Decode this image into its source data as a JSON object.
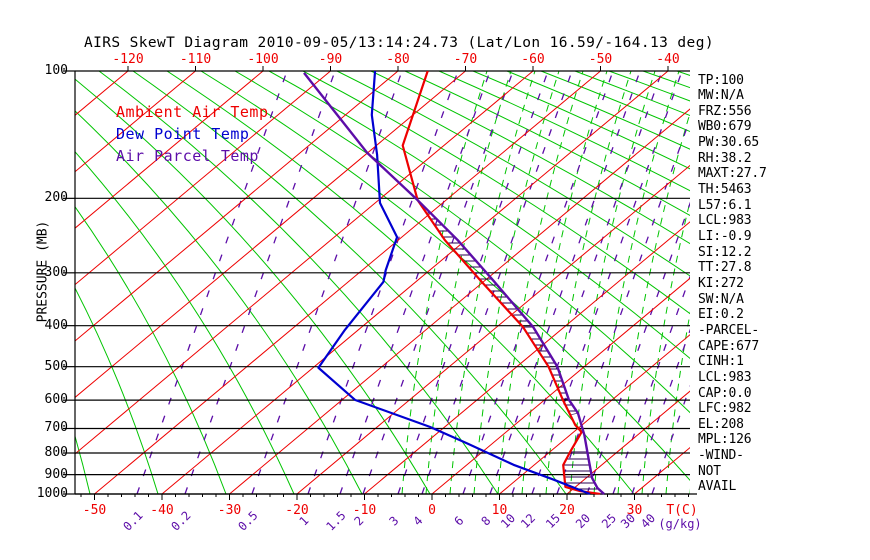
{
  "title": "AIRS SkewT Diagram 2010-09-05/13:14:24.73 (Lat/Lon 16.59/-164.13 deg)",
  "colors": {
    "temp_red": "#ee0000",
    "dew_blue": "#0000d0",
    "parcel_purple": "#5c0da8",
    "adiabat_green": "#00c400",
    "axis_black": "#000000",
    "hatch_dark": "#2a0050"
  },
  "legend": {
    "items": [
      {
        "label": "Ambient Air Temp",
        "color_key": "temp_red"
      },
      {
        "label": "Dew Point Temp",
        "color_key": "dew_blue"
      },
      {
        "label": "Air Parcel Temp",
        "color_key": "parcel_purple"
      }
    ]
  },
  "axes": {
    "pressure_label": "PRESSURE (MB)",
    "pressure_ticks": [
      100,
      200,
      300,
      400,
      500,
      600,
      700,
      800,
      900,
      1000
    ],
    "top_temp_ticks": [
      -120,
      -110,
      -100,
      -90,
      -80,
      -70,
      -60,
      -50,
      -40
    ],
    "bottom_temp_ticks": [
      -50,
      -40,
      -30,
      -20,
      -10,
      0,
      10,
      20,
      30
    ],
    "temp_unit": "T(C)",
    "mixing_unit": "(g/kg)",
    "mixing_ratio_ticks": [
      0.1,
      0.2,
      0.5,
      1,
      1.5,
      2,
      3,
      4,
      6,
      8,
      10,
      12,
      15,
      20,
      25,
      30,
      40
    ]
  },
  "stats": [
    "TP:100",
    "MW:N/A",
    "FRZ:556",
    "WB0:679",
    "PW:30.65",
    "RH:38.2",
    "MAXT:27.7",
    "TH:5463",
    "L57:6.1",
    "LCL:983",
    "LI:-0.9",
    "SI:12.2",
    "TT:27.8",
    "KI:272",
    "SW:N/A",
    "EI:0.2",
    "-PARCEL-",
    "CAPE:677",
    "CINH:1",
    "LCL:983",
    "CAP:0.0",
    "LFC:982",
    "EL:208",
    "MPL:126",
    "-WIND-",
    "NOT",
    "AVAIL"
  ],
  "chart_data": {
    "type": "line",
    "title": "AIRS SkewT Diagram 2010-09-05/13:14:24.73 (Lat/Lon 16.59/-164.13 deg)",
    "xlabel": "Temperature (C), skewed",
    "ylabel": "Pressure (MB), log scale",
    "ylim": [
      100,
      1000
    ],
    "grid": "skew-t (isotherms, dry/moist adiabats, mixing-ratio lines)",
    "legend_position": "top-left inside plot",
    "series": [
      {
        "name": "Ambient Air Temp",
        "color_key": "temp_red",
        "points_pressure_temp": [
          [
            100,
            -75.6
          ],
          [
            150,
            -66.1
          ],
          [
            202,
            -54.2
          ],
          [
            251,
            -43.1
          ],
          [
            312,
            -30.8
          ],
          [
            403,
            -16.1
          ],
          [
            500,
            -5.3
          ],
          [
            599,
            2.7
          ],
          [
            687,
            9.0
          ],
          [
            714,
            11.2
          ],
          [
            795,
            13.0
          ],
          [
            854,
            14.3
          ],
          [
            962,
            18.5
          ],
          [
            984,
            21.4
          ],
          [
            1000,
            24.9
          ]
        ]
      },
      {
        "name": "Dew Point Temp",
        "color_key": "dew_blue",
        "points_pressure_temp": [
          [
            100,
            -83.4
          ],
          [
            127,
            -76.1
          ],
          [
            158,
            -68.2
          ],
          [
            205,
            -59.3
          ],
          [
            247,
            -50.7
          ],
          [
            296,
            -46.5
          ],
          [
            315,
            -44.8
          ],
          [
            409,
            -42.0
          ],
          [
            503,
            -39.2
          ],
          [
            599,
            -28.1
          ],
          [
            694,
            -12.2
          ],
          [
            758,
            -3.9
          ],
          [
            853,
            6.9
          ],
          [
            925,
            15.5
          ],
          [
            1000,
            23.4
          ]
        ]
      },
      {
        "name": "Air Parcel Temp",
        "color_key": "parcel_purple",
        "points_pressure_temp": [
          [
            101,
            -93.6
          ],
          [
            156,
            -70.1
          ],
          [
            202,
            -54.2
          ],
          [
            251,
            -41.2
          ],
          [
            312,
            -28.9
          ],
          [
            403,
            -14.6
          ],
          [
            500,
            -4.0
          ],
          [
            599,
            3.6
          ],
          [
            644,
            7.3
          ],
          [
            725,
            12.1
          ],
          [
            831,
            17.2
          ],
          [
            917,
            20.9
          ],
          [
            967,
            23.4
          ],
          [
            1000,
            25.5
          ]
        ]
      }
    ],
    "cape_hatch_regions": [
      [
        [
          202,
          -54.2
        ],
        [
          251,
          -43.1
        ],
        [
          312,
          -30.8
        ],
        [
          403,
          -16.1
        ],
        [
          500,
          -5.3
        ],
        [
          599,
          2.7
        ],
        [
          650,
          6.4
        ],
        [
          644,
          7.3
        ],
        [
          599,
          3.6
        ],
        [
          500,
          -4.0
        ],
        [
          403,
          -14.6
        ],
        [
          312,
          -28.9
        ],
        [
          251,
          -41.2
        ]
      ],
      [
        [
          795,
          13.0
        ],
        [
          854,
          14.3
        ],
        [
          962,
          18.5
        ],
        [
          984,
          21.4
        ],
        [
          1000,
          24.9
        ],
        [
          1000,
          25.5
        ],
        [
          967,
          23.4
        ],
        [
          917,
          20.9
        ],
        [
          831,
          17.2
        ],
        [
          795,
          15.5
        ]
      ]
    ]
  }
}
